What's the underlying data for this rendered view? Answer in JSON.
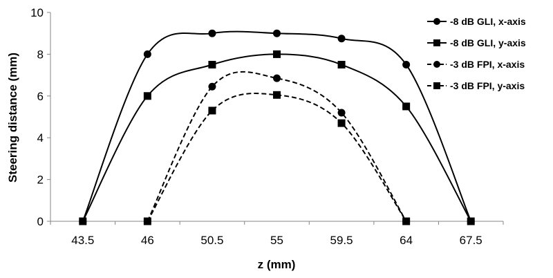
{
  "chart_data": {
    "type": "line",
    "categories": [
      "43.5",
      "46",
      "50.5",
      "55",
      "59.5",
      "64",
      "67.5"
    ],
    "xlabel": "z (mm)",
    "ylabel": "Steering distance (mm)",
    "ylim": [
      0,
      10
    ],
    "yticks": [
      0,
      2,
      4,
      6,
      8,
      10
    ],
    "grid": false,
    "legend_position": "top-right",
    "series": [
      {
        "name": "-8 dB GLI, x-axis",
        "marker": "circle",
        "dash": "solid",
        "values": [
          0,
          8,
          9,
          9,
          8.75,
          7.5,
          0
        ]
      },
      {
        "name": "-8 dB GLI, y-axis",
        "marker": "square",
        "dash": "solid",
        "values": [
          0,
          6,
          7.5,
          8,
          7.5,
          5.5,
          0
        ]
      },
      {
        "name": "-3 dB FPI, x-axis",
        "marker": "circle",
        "dash": "dashed",
        "values": [
          null,
          0,
          6.45,
          6.85,
          5.2,
          0,
          null
        ]
      },
      {
        "name": "-3 dB FPI, y-axis",
        "marker": "square",
        "dash": "dashed",
        "values": [
          null,
          0,
          5.3,
          6.05,
          4.7,
          0,
          null
        ]
      }
    ]
  }
}
